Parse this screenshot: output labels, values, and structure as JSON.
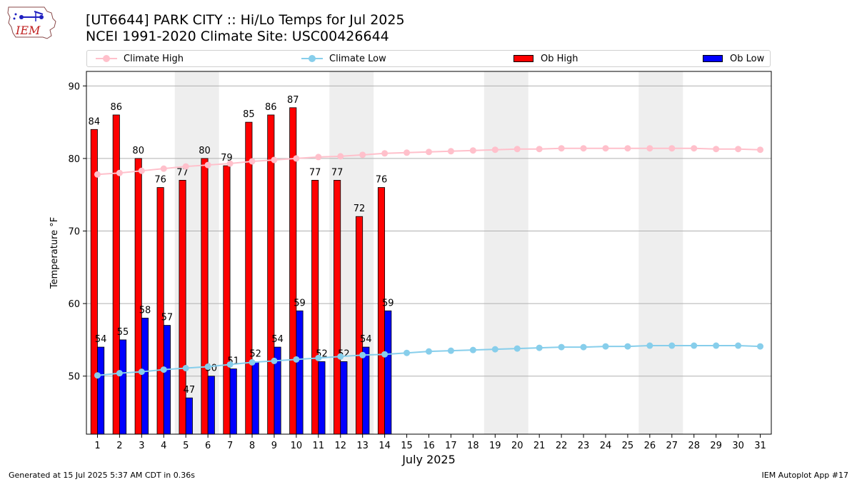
{
  "header": {
    "title_line1": "[UT6644] PARK CITY :: Hi/Lo Temps for Jul 2025",
    "title_line2": "NCEI 1991-2020 Climate Site: USC00426644"
  },
  "logo": {
    "text": "IEM"
  },
  "legend": {
    "climate_high": "Climate High",
    "climate_low": "Climate Low",
    "ob_high": "Ob High",
    "ob_low": "Ob Low"
  },
  "footer": {
    "left": "Generated at 15 Jul 2025 5:37 AM CDT in 0.36s",
    "right": "IEM Autoplot App #17"
  },
  "colors": {
    "climate_high": "#ffc0cb",
    "climate_low": "#87ceeb",
    "ob_high": "#ff0000",
    "ob_low": "#0000ff",
    "weekend_shade": "#eeeeee",
    "grid": "#b0b0b0"
  },
  "chart_data": {
    "type": "bar",
    "xlabel": "July 2025",
    "ylabel": "Temperature °F",
    "ylim": [
      42,
      92
    ],
    "yticks": [
      50,
      60,
      70,
      80,
      90
    ],
    "xlim": [
      0.5,
      31.5
    ],
    "days": [
      1,
      2,
      3,
      4,
      5,
      6,
      7,
      8,
      9,
      10,
      11,
      12,
      13,
      14,
      15,
      16,
      17,
      18,
      19,
      20,
      21,
      22,
      23,
      24,
      25,
      26,
      27,
      28,
      29,
      30,
      31
    ],
    "shaded_day_ranges": [
      [
        5,
        6
      ],
      [
        12,
        13
      ],
      [
        19,
        20
      ],
      [
        26,
        27
      ]
    ],
    "grid": "horizontal",
    "series": [
      {
        "name": "Ob High",
        "kind": "bar",
        "values": [
          84,
          86,
          80,
          76,
          77,
          80,
          79,
          85,
          86,
          87,
          77,
          77,
          72,
          76
        ]
      },
      {
        "name": "Ob Low",
        "kind": "bar",
        "values": [
          54,
          55,
          58,
          57,
          47,
          50,
          51,
          52,
          54,
          59,
          52,
          52,
          54,
          59
        ]
      },
      {
        "name": "Climate High",
        "kind": "line",
        "values": [
          77.8,
          78.0,
          78.3,
          78.6,
          78.9,
          79.1,
          79.3,
          79.6,
          79.8,
          80.0,
          80.2,
          80.3,
          80.5,
          80.7,
          80.8,
          80.9,
          81.0,
          81.1,
          81.2,
          81.3,
          81.3,
          81.4,
          81.4,
          81.4,
          81.4,
          81.4,
          81.4,
          81.4,
          81.3,
          81.3,
          81.2
        ]
      },
      {
        "name": "Climate Low",
        "kind": "line",
        "values": [
          50.1,
          50.4,
          50.6,
          50.9,
          51.1,
          51.3,
          51.6,
          51.9,
          52.1,
          52.3,
          52.5,
          52.7,
          52.9,
          53.0,
          53.2,
          53.4,
          53.5,
          53.6,
          53.7,
          53.8,
          53.9,
          54.0,
          54.0,
          54.1,
          54.1,
          54.2,
          54.2,
          54.2,
          54.2,
          54.2,
          54.1
        ]
      }
    ]
  }
}
